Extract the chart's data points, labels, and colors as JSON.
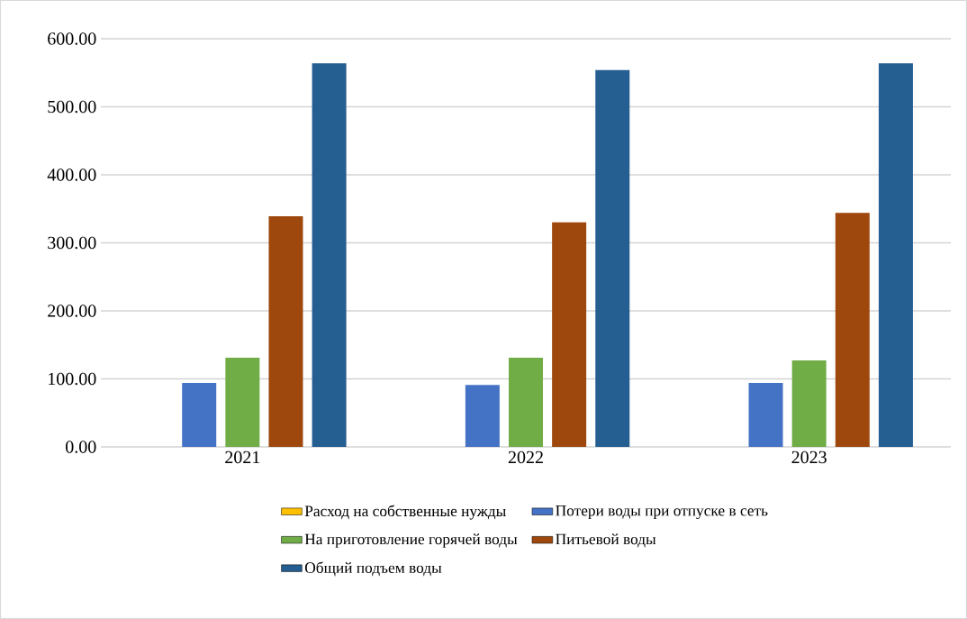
{
  "chart_data": {
    "type": "bar",
    "categories": [
      "2021",
      "2022",
      "2023"
    ],
    "series": [
      {
        "name": "Расход на собственные нужды",
        "color": "#ffc000",
        "values": [
          0,
          0,
          0
        ]
      },
      {
        "name": "Потери воды при отпуске в сеть",
        "color": "#4472c4",
        "values": [
          94,
          91,
          94
        ]
      },
      {
        "name": "На приготовление горячей воды",
        "color": "#70ad47",
        "values": [
          131,
          131,
          127
        ]
      },
      {
        "name": "Питьевой воды",
        "color": "#9e480e",
        "values": [
          339,
          330,
          344
        ]
      },
      {
        "name": "Общий подъем воды",
        "color": "#255e91",
        "values": [
          564,
          554,
          564
        ]
      }
    ],
    "ylim": [
      0,
      600
    ],
    "yticks": [
      {
        "value": 0,
        "label": "0.00"
      },
      {
        "value": 100,
        "label": "100.00"
      },
      {
        "value": 200,
        "label": "200.00"
      },
      {
        "value": 300,
        "label": "300.00"
      },
      {
        "value": 400,
        "label": "400.00"
      },
      {
        "value": 500,
        "label": "500.00"
      },
      {
        "value": 600,
        "label": "600.00"
      }
    ],
    "grid": "y",
    "legend": "bottom"
  }
}
